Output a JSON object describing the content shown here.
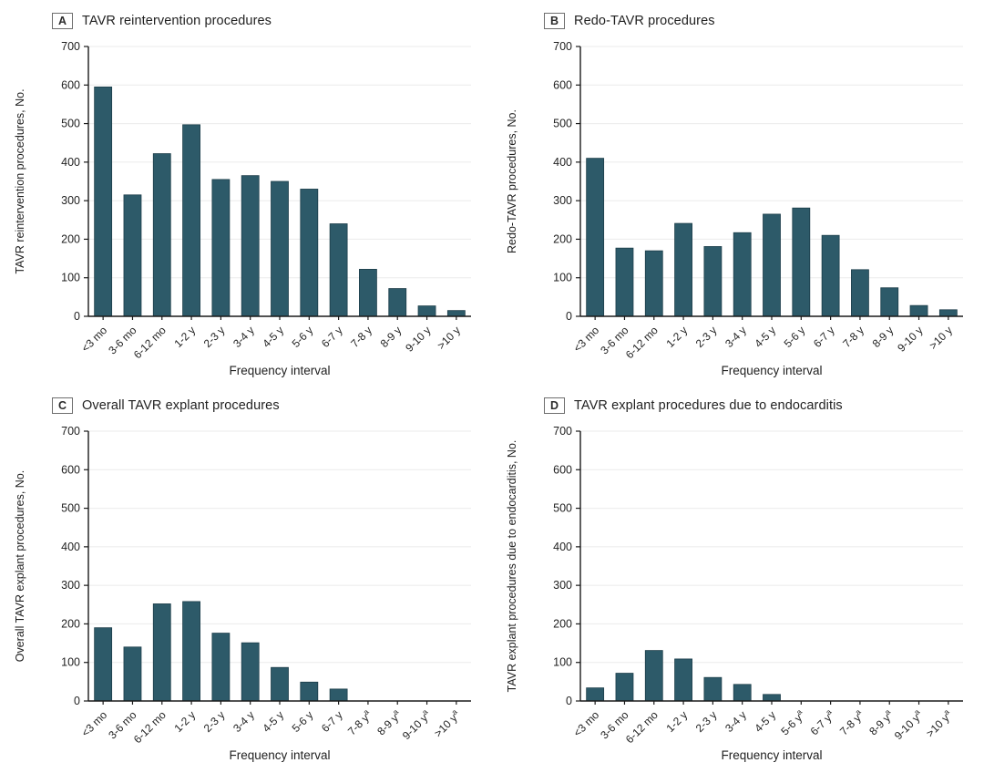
{
  "style": {
    "bar_color": "#2d5a69",
    "bar_stroke": "#1c3d49",
    "axis_color": "#1a1a1a",
    "grid_color": "#ebebeb",
    "text_color": "#1f1f1f"
  },
  "footnote_marker": "a",
  "chart_data": [
    {
      "type": "bar",
      "panel": "A",
      "title": "TAVR reintervention procedures",
      "ylabel": "TAVR reintervention procedures, No.",
      "xlabel": "Frequency interval",
      "categories": [
        "<3 mo",
        "3-6 mo",
        "6-12 mo",
        "1-2 y",
        "2-3 y",
        "3-4 y",
        "4-5 y",
        "5-6 y",
        "6-7 y",
        "7-8 y",
        "8-9 y",
        "9-10 y",
        ">10 y"
      ],
      "values": [
        595,
        315,
        422,
        497,
        355,
        365,
        350,
        330,
        240,
        122,
        72,
        27,
        15
      ],
      "sup_flags": [
        0,
        0,
        0,
        0,
        0,
        0,
        0,
        0,
        0,
        0,
        0,
        0,
        0
      ],
      "ylim": [
        0,
        700
      ],
      "ytick_step": 100,
      "grid": true,
      "legend": null
    },
    {
      "type": "bar",
      "panel": "B",
      "title": "Redo-TAVR procedures",
      "ylabel": "Redo-TAVR procedures, No.",
      "xlabel": "Frequency interval",
      "categories": [
        "<3 mo",
        "3-6 mo",
        "6-12 mo",
        "1-2 y",
        "2-3 y",
        "3-4 y",
        "4-5 y",
        "5-6 y",
        "6-7 y",
        "7-8 y",
        "8-9 y",
        "9-10 y",
        ">10 y"
      ],
      "values": [
        410,
        177,
        170,
        241,
        181,
        217,
        265,
        281,
        210,
        121,
        74,
        28,
        17
      ],
      "sup_flags": [
        0,
        0,
        0,
        0,
        0,
        0,
        0,
        0,
        0,
        0,
        0,
        0,
        0
      ],
      "ylim": [
        0,
        700
      ],
      "ytick_step": 100,
      "grid": true,
      "legend": null
    },
    {
      "type": "bar",
      "panel": "C",
      "title": "Overall TAVR explant procedures",
      "ylabel": "Overall TAVR explant procedures, No.",
      "xlabel": "Frequency interval",
      "categories": [
        "<3 mo",
        "3-6 mo",
        "6-12 mo",
        "1-2 y",
        "2-3 y",
        "3-4 y",
        "4-5 y",
        "5-6 y",
        "6-7 y",
        "7-8 y",
        "8-9 y",
        "9-10 y",
        ">10 y"
      ],
      "values": [
        190,
        140,
        252,
        258,
        176,
        151,
        87,
        49,
        31,
        0,
        0,
        0,
        0
      ],
      "sup_flags": [
        0,
        0,
        0,
        0,
        0,
        0,
        0,
        0,
        0,
        1,
        1,
        1,
        1
      ],
      "ylim": [
        0,
        700
      ],
      "ytick_step": 100,
      "grid": true,
      "legend": null
    },
    {
      "type": "bar",
      "panel": "D",
      "title": "TAVR explant procedures due to endocarditis",
      "ylabel": "TAVR explant procedures due to endocarditis, No.",
      "xlabel": "Frequency interval",
      "categories": [
        "<3 mo",
        "3-6 mo",
        "6-12 mo",
        "1-2 y",
        "2-3 y",
        "3-4 y",
        "4-5 y",
        "5-6 y",
        "6-7 y",
        "7-8 y",
        "8-9 y",
        "9-10 y",
        ">10 y"
      ],
      "values": [
        34,
        72,
        131,
        109,
        61,
        43,
        17,
        0,
        0,
        0,
        0,
        0,
        0
      ],
      "sup_flags": [
        0,
        0,
        0,
        0,
        0,
        0,
        0,
        1,
        1,
        1,
        1,
        1,
        1
      ],
      "ylim": [
        0,
        700
      ],
      "ytick_step": 100,
      "grid": true,
      "legend": null
    }
  ]
}
